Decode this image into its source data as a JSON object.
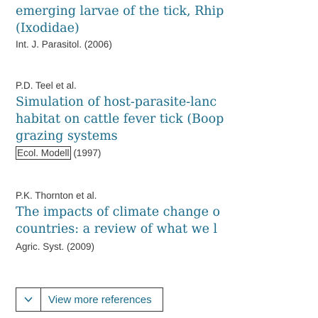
{
  "references": [
    {
      "title_lines": [
        "emerging larvae of the tick, Rhip",
        "(Ixodidae)"
      ],
      "source": "Int. J. Parasitol. (2006)"
    },
    {
      "authors": "P.D. Teel et al.",
      "title_lines": [
        "Simulation of host-parasite-lanc",
        "habitat on cattle fever tick (Boop",
        "grazing systems"
      ],
      "source_journal": "Ecol. Modell",
      "source_year": "(1997)"
    },
    {
      "authors": "P.K. Thornton et al.",
      "title_lines": [
        "The impacts of climate change o",
        "countries: a review of what we l"
      ],
      "source": "Agric. Syst. (2009)"
    }
  ],
  "more_references": {
    "label": "View more references",
    "icon": "chevron-down-icon"
  },
  "colors": {
    "link": "#1a6a8a",
    "text": "#3a3a3a"
  }
}
